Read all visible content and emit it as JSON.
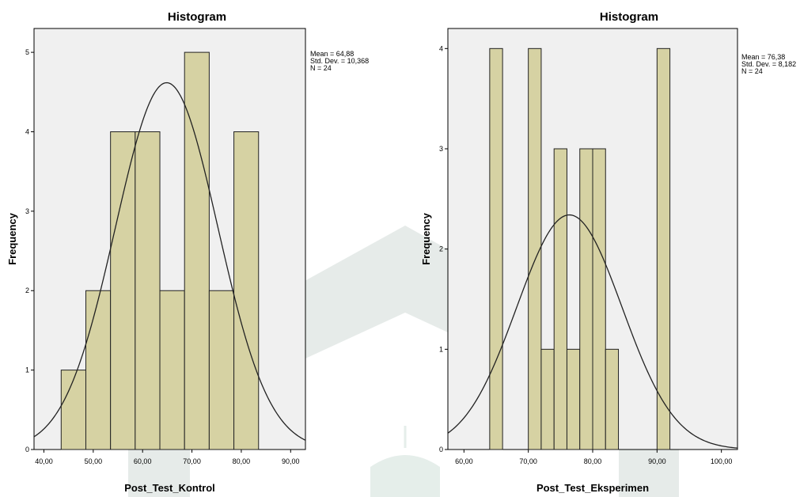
{
  "chart_data": [
    {
      "type": "bar",
      "title": "Histogram",
      "xlabel": "Post_Test_Kontrol",
      "ylabel": "Frequency",
      "xlim": [
        38,
        93
      ],
      "ylim": [
        0,
        5.3
      ],
      "xticks": [
        40,
        50,
        60,
        70,
        80,
        90
      ],
      "xtick_labels": [
        "40,00",
        "50,00",
        "60,00",
        "70,00",
        "80,00",
        "90,00"
      ],
      "yticks": [
        0,
        1,
        2,
        3,
        4,
        5
      ],
      "ytick_labels": [
        "0",
        "1",
        "2",
        "3",
        "4",
        "5"
      ],
      "bins": [
        {
          "start": 43.5,
          "end": 48.5,
          "count": 1
        },
        {
          "start": 48.5,
          "end": 53.5,
          "count": 2
        },
        {
          "start": 53.5,
          "end": 58.5,
          "count": 4
        },
        {
          "start": 58.5,
          "end": 63.5,
          "count": 4
        },
        {
          "start": 63.5,
          "end": 68.5,
          "count": 2
        },
        {
          "start": 68.5,
          "end": 73.5,
          "count": 5
        },
        {
          "start": 73.5,
          "end": 78.5,
          "count": 2
        },
        {
          "start": 78.5,
          "end": 83.5,
          "count": 4
        }
      ],
      "normal_curve": {
        "mean": 64.88,
        "std": 10.368,
        "n": 24,
        "bin_width": 5
      },
      "stats": [
        "Mean = 64,88",
        "Std. Dev. = 10,368",
        "N = 24"
      ],
      "grid": false,
      "legend": "right"
    },
    {
      "type": "bar",
      "title": "Histogram",
      "xlabel": "Post_Test_Eksperimen",
      "ylabel": "Frequency",
      "xlim": [
        57.5,
        102.5
      ],
      "ylim": [
        0,
        4.2
      ],
      "xticks": [
        60,
        70,
        80,
        90,
        100
      ],
      "xtick_labels": [
        "60,00",
        "70,00",
        "80,00",
        "90,00",
        "100,00"
      ],
      "yticks": [
        0,
        1,
        2,
        3,
        4
      ],
      "ytick_labels": [
        "0",
        "1",
        "2",
        "3",
        "4"
      ],
      "bins": [
        {
          "start": 64,
          "end": 66,
          "count": 4
        },
        {
          "start": 70,
          "end": 72,
          "count": 4
        },
        {
          "start": 72,
          "end": 74,
          "count": 1
        },
        {
          "start": 74,
          "end": 76,
          "count": 3
        },
        {
          "start": 76,
          "end": 78,
          "count": 1
        },
        {
          "start": 78,
          "end": 80,
          "count": 3
        },
        {
          "start": 80,
          "end": 82,
          "count": 3
        },
        {
          "start": 82,
          "end": 84,
          "count": 1
        },
        {
          "start": 90,
          "end": 92,
          "count": 4
        }
      ],
      "normal_curve": {
        "mean": 76.38,
        "std": 8.182,
        "n": 24,
        "bin_width": 2
      },
      "stats": [
        "Mean = 76,38",
        "Std. Dev. = 8,182",
        "N = 24"
      ],
      "grid": false,
      "legend": "right"
    }
  ],
  "colors": {
    "plot_bg": "#f0f0f0",
    "bar_fill": "#d6d2a3",
    "bar_stroke": "#222222",
    "curve": "#222222",
    "watermark": "#c8d3cf"
  }
}
